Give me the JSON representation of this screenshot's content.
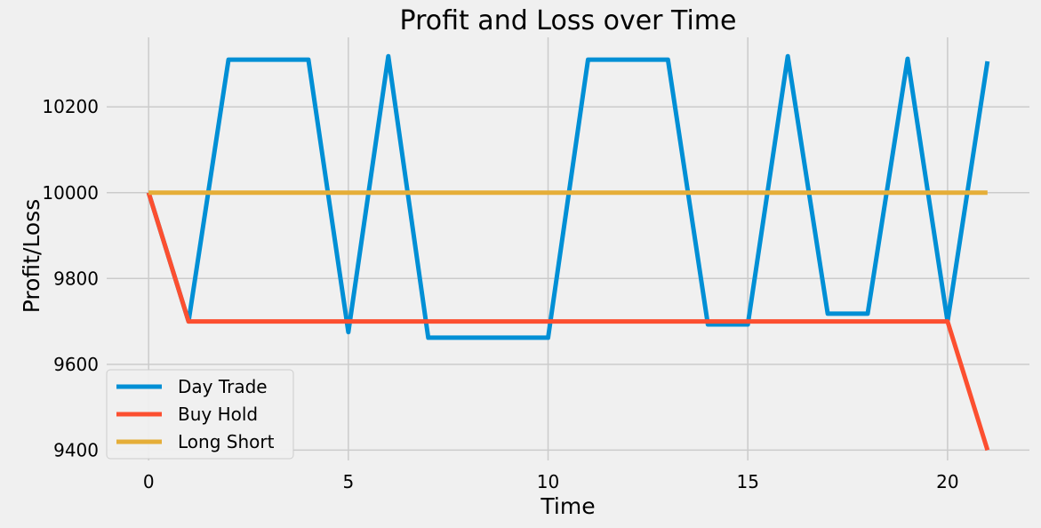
{
  "chart_data": {
    "type": "line",
    "title": "Profit and Loss over Time",
    "xlabel": "Time",
    "ylabel": "Profit/Loss",
    "xlim": [
      -1.05,
      22.05
    ],
    "ylim": [
      9376,
      10362
    ],
    "xticks": [
      0,
      5,
      10,
      15,
      20
    ],
    "yticks": [
      9400,
      9600,
      9800,
      10000,
      10200
    ],
    "grid": true,
    "legend_position": "lower-left",
    "background": "#f0f0f0",
    "x": [
      0,
      1,
      2,
      3,
      4,
      5,
      6,
      7,
      8,
      9,
      10,
      11,
      12,
      13,
      14,
      15,
      16,
      17,
      18,
      19,
      20,
      21
    ],
    "series": [
      {
        "name": "Day Trade",
        "color": "#008fd5",
        "values": [
          10000,
          9700,
          10310,
          10310,
          10310,
          9675,
          10318,
          9662,
          9662,
          9662,
          9662,
          10310,
          10310,
          10310,
          9693,
          9693,
          10318,
          9718,
          9718,
          10312,
          9700,
          10306
        ]
      },
      {
        "name": "Buy Hold",
        "color": "#fc4f30",
        "values": [
          10000,
          9700,
          9700,
          9700,
          9700,
          9700,
          9700,
          9700,
          9700,
          9700,
          9700,
          9700,
          9700,
          9700,
          9700,
          9700,
          9700,
          9700,
          9700,
          9700,
          9700,
          9400
        ]
      },
      {
        "name": "Long Short",
        "color": "#e5ae38",
        "values": [
          10000,
          10000,
          10000,
          10000,
          10000,
          10000,
          10000,
          10000,
          10000,
          10000,
          10000,
          10000,
          10000,
          10000,
          10000,
          10000,
          10000,
          10000,
          10000,
          10000,
          10000,
          10000
        ]
      }
    ]
  }
}
